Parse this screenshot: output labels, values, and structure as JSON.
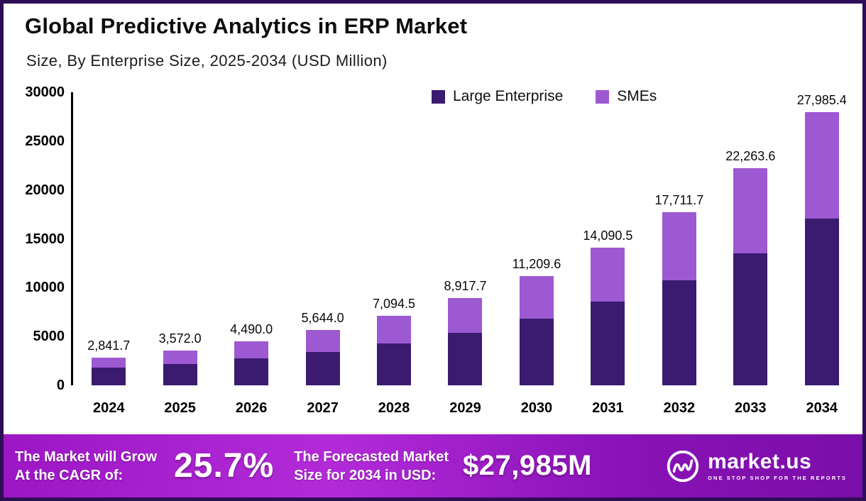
{
  "chart_data": {
    "type": "bar",
    "stacked": true,
    "title": "Global Predictive Analytics in ERP Market",
    "subtitle": "Size, By Enterprise Size, 2025-2034 (USD Million)",
    "categories": [
      "2024",
      "2025",
      "2026",
      "2027",
      "2028",
      "2029",
      "2030",
      "2031",
      "2032",
      "2033",
      "2034"
    ],
    "series": [
      {
        "name": "Large Enterprise",
        "color": "#3B1B70",
        "values": [
          1850,
          2200,
          2750,
          3450,
          4300,
          5400,
          6800,
          8600,
          10750,
          13500,
          17050
        ]
      },
      {
        "name": "SMEs",
        "color": "#9D59D2",
        "values": [
          991.7,
          1372,
          1740,
          2194,
          2794.5,
          3517.7,
          4409.6,
          5490.5,
          6961.7,
          8763.6,
          10935.4
        ]
      }
    ],
    "totals": [
      2841.7,
      3572.0,
      4490.0,
      5644.0,
      7094.5,
      8917.7,
      11209.6,
      14090.5,
      17711.7,
      22263.6,
      27985.4
    ],
    "total_labels": [
      "2,841.7",
      "3,572.0",
      "4,490.0",
      "5,644.0",
      "7,094.5",
      "8,917.7",
      "11,209.6",
      "14,090.5",
      "17,711.7",
      "22,263.6",
      "27,985.4"
    ],
    "xlabel": "",
    "ylabel": "",
    "ylim": [
      0,
      30000
    ],
    "yticks": [
      0,
      5000,
      10000,
      15000,
      20000,
      25000,
      30000
    ],
    "ytick_labels": [
      "0",
      "5000",
      "10000",
      "15000",
      "20000",
      "25000",
      "30000"
    ],
    "grid": false,
    "legend_position": "top-center"
  },
  "banner": {
    "cagr_label_line1": "The Market will Grow",
    "cagr_label_line2": "At the CAGR of:",
    "cagr_value": "25.7%",
    "forecast_label_line1": "The Forecasted Market",
    "forecast_label_line2": "Size for 2034 in USD:",
    "forecast_value": "$27,985M",
    "brand": "market.us",
    "brand_tagline": "ONE STOP SHOP FOR THE REPORTS"
  },
  "colors": {
    "large_enterprise": "#3B1B70",
    "smes": "#9D59D2",
    "axis": "#000000",
    "frame_border": "#2E0E57",
    "banner_gradient_start": "#9C17C4",
    "banner_gradient_end": "#7A0EA8",
    "text": "#0d0d0d",
    "banner_text": "#ffffff"
  }
}
